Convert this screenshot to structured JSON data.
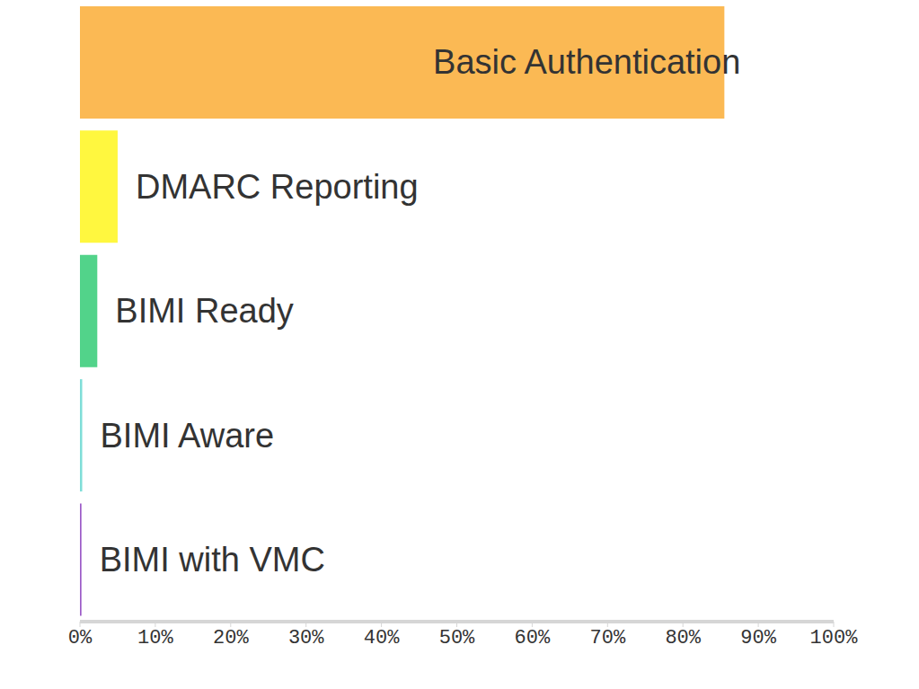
{
  "chart_data": {
    "type": "bar",
    "orientation": "horizontal",
    "categories": [
      "Basic Authentication",
      "DMARC Reporting",
      "BIMI Ready",
      "BIMI Aware",
      "BIMI with VMC"
    ],
    "values": [
      85.5,
      5,
      2.3,
      0.3,
      0.2
    ],
    "colors": [
      "#fbb954",
      "#fff73f",
      "#52d38a",
      "#7fded8",
      "#9b59c7"
    ],
    "xlim": [
      0,
      100
    ],
    "xticks": [
      {
        "value": 0,
        "label": "0%"
      },
      {
        "value": 10,
        "label": "10%"
      },
      {
        "value": 20,
        "label": "20%"
      },
      {
        "value": 30,
        "label": "30%"
      },
      {
        "value": 40,
        "label": "40%"
      },
      {
        "value": 50,
        "label": "50%"
      },
      {
        "value": 60,
        "label": "60%"
      },
      {
        "value": 70,
        "label": "70%"
      },
      {
        "value": 80,
        "label": "80%"
      },
      {
        "value": 90,
        "label": "90%"
      },
      {
        "value": 100,
        "label": "100%"
      }
    ],
    "tick_labels": "x",
    "grid": false
  }
}
